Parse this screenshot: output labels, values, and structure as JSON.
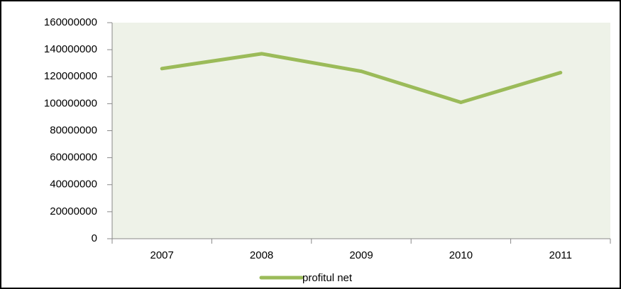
{
  "chart_data": {
    "type": "line",
    "categories": [
      "2007",
      "2008",
      "2009",
      "2010",
      "2011"
    ],
    "series": [
      {
        "name": "profitul net",
        "color": "#9bbb59",
        "values": [
          126000000,
          137000000,
          124000000,
          101000000,
          123000000
        ]
      }
    ],
    "ylim": [
      0,
      160000000
    ],
    "yticks": [
      0,
      20000000,
      40000000,
      60000000,
      80000000,
      100000000,
      120000000,
      140000000,
      160000000
    ],
    "grid": false,
    "legend": "bottom"
  }
}
